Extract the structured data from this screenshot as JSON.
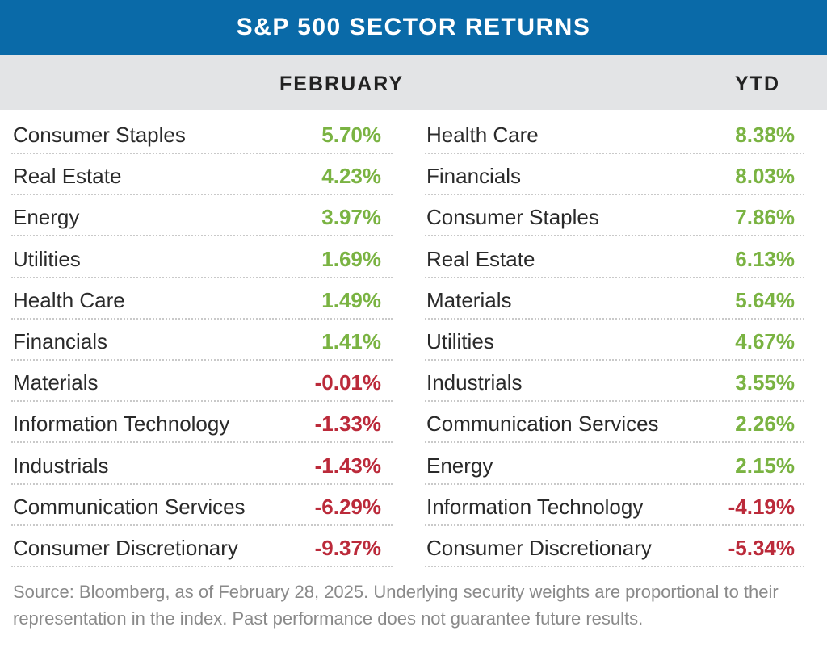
{
  "title": "S&P 500 SECTOR RETURNS",
  "headers": {
    "february": "FEBRUARY",
    "ytd": "YTD"
  },
  "colors": {
    "title_bg": "#0a6aa8",
    "header_bg": "#e3e4e6",
    "positive": "#7ab342",
    "negative": "#bb2a3a"
  },
  "chart_data": {
    "type": "table",
    "title": "S&P 500 SECTOR RETURNS",
    "columns": [
      "FEBRUARY",
      "YTD"
    ],
    "february": [
      {
        "sector": "Consumer Staples",
        "value": "5.70%",
        "sign": "pos"
      },
      {
        "sector": "Real Estate",
        "value": "4.23%",
        "sign": "pos"
      },
      {
        "sector": "Energy",
        "value": "3.97%",
        "sign": "pos"
      },
      {
        "sector": "Utilities",
        "value": "1.69%",
        "sign": "pos"
      },
      {
        "sector": "Health Care",
        "value": "1.49%",
        "sign": "pos"
      },
      {
        "sector": "Financials",
        "value": "1.41%",
        "sign": "pos"
      },
      {
        "sector": "Materials",
        "value": "-0.01%",
        "sign": "neg"
      },
      {
        "sector": "Information Technology",
        "value": "-1.33%",
        "sign": "neg"
      },
      {
        "sector": "Industrials",
        "value": "-1.43%",
        "sign": "neg"
      },
      {
        "sector": "Communication Services",
        "value": "-6.29%",
        "sign": "neg"
      },
      {
        "sector": "Consumer Discretionary",
        "value": "-9.37%",
        "sign": "neg"
      }
    ],
    "ytd": [
      {
        "sector": "Health Care",
        "value": "8.38%",
        "sign": "pos"
      },
      {
        "sector": "Financials",
        "value": "8.03%",
        "sign": "pos"
      },
      {
        "sector": "Consumer Staples",
        "value": "7.86%",
        "sign": "pos"
      },
      {
        "sector": "Real Estate",
        "value": "6.13%",
        "sign": "pos"
      },
      {
        "sector": "Materials",
        "value": "5.64%",
        "sign": "pos"
      },
      {
        "sector": "Utilities",
        "value": "4.67%",
        "sign": "pos"
      },
      {
        "sector": "Industrials",
        "value": "3.55%",
        "sign": "pos"
      },
      {
        "sector": "Communication Services",
        "value": "2.26%",
        "sign": "pos"
      },
      {
        "sector": "Energy",
        "value": "2.15%",
        "sign": "pos"
      },
      {
        "sector": "Information Technology",
        "value": "-4.19%",
        "sign": "neg"
      },
      {
        "sector": "Consumer Discretionary",
        "value": "-5.34%",
        "sign": "neg"
      }
    ]
  },
  "footnote": "Source: Bloomberg, as of February 28, 2025. Underlying security weights are proportional to their representation in the index. Past performance does not guarantee future results."
}
